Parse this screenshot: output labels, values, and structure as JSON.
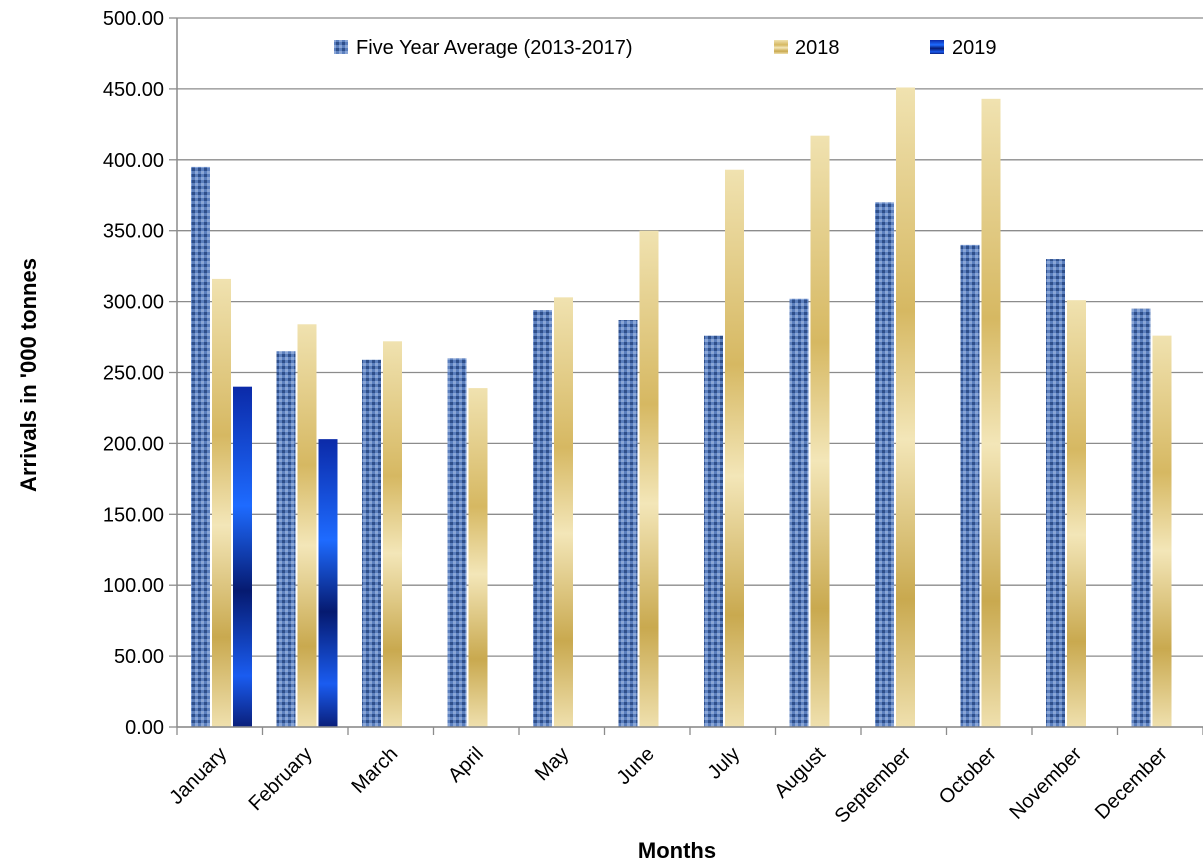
{
  "chart_data": {
    "type": "bar",
    "title": "",
    "xlabel": "Months",
    "ylabel": "Arrivals in '000 tonnes",
    "ylim": [
      0,
      500
    ],
    "ytick_step": 50,
    "ytick_labels": [
      "0.00",
      "50.00",
      "100.00",
      "150.00",
      "200.00",
      "250.00",
      "300.00",
      "350.00",
      "400.00",
      "450.00",
      "500.00"
    ],
    "grid": true,
    "legend_position": "top-center",
    "categories": [
      "January",
      "February",
      "March",
      "April",
      "May",
      "June",
      "July",
      "August",
      "September",
      "October",
      "November",
      "December"
    ],
    "series": [
      {
        "name": "Five Year Average (2013-2017)",
        "color": "#4a6fae",
        "values": [
          395,
          265,
          259,
          260,
          294,
          287,
          276,
          302,
          370,
          340,
          330,
          295
        ]
      },
      {
        "name": "2018",
        "color": "#d9c06a",
        "values": [
          316,
          284,
          272,
          239,
          303,
          350,
          393,
          417,
          451,
          443,
          301,
          276
        ]
      },
      {
        "name": "2019",
        "color": "#0a3fd8",
        "values": [
          240,
          203,
          null,
          null,
          null,
          null,
          null,
          null,
          null,
          null,
          null,
          null
        ]
      }
    ]
  }
}
